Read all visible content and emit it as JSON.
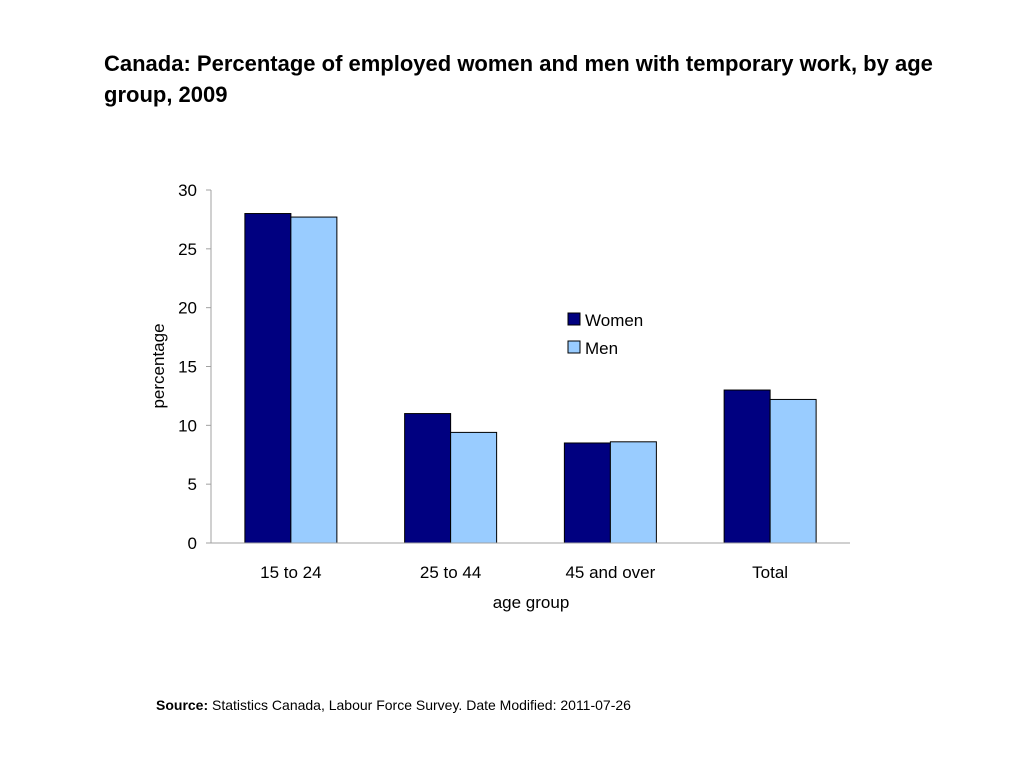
{
  "page": {
    "title": "Canada: Percentage of employed women and men with temporary work, by age group, 2009",
    "source_label": "Source:",
    "source_text": " Statistics Canada, Labour Force Survey. Date Modified: 2011-07-26"
  },
  "chart_data": {
    "type": "bar",
    "title": "",
    "xlabel": "age group",
    "ylabel": "percentage",
    "categories": [
      "15 to 24",
      "25 to 44",
      "45 and over",
      "Total"
    ],
    "series": [
      {
        "name": "Women",
        "values": [
          28.0,
          11.0,
          8.5,
          13.0
        ],
        "color": "#000080"
      },
      {
        "name": "Men",
        "values": [
          27.7,
          9.4,
          8.6,
          12.2
        ],
        "color": "#99ccff"
      }
    ],
    "ylim": [
      0,
      30
    ],
    "yticks": [
      0,
      5,
      10,
      15,
      20,
      25,
      30
    ],
    "grid": false,
    "legend_position": "right"
  }
}
